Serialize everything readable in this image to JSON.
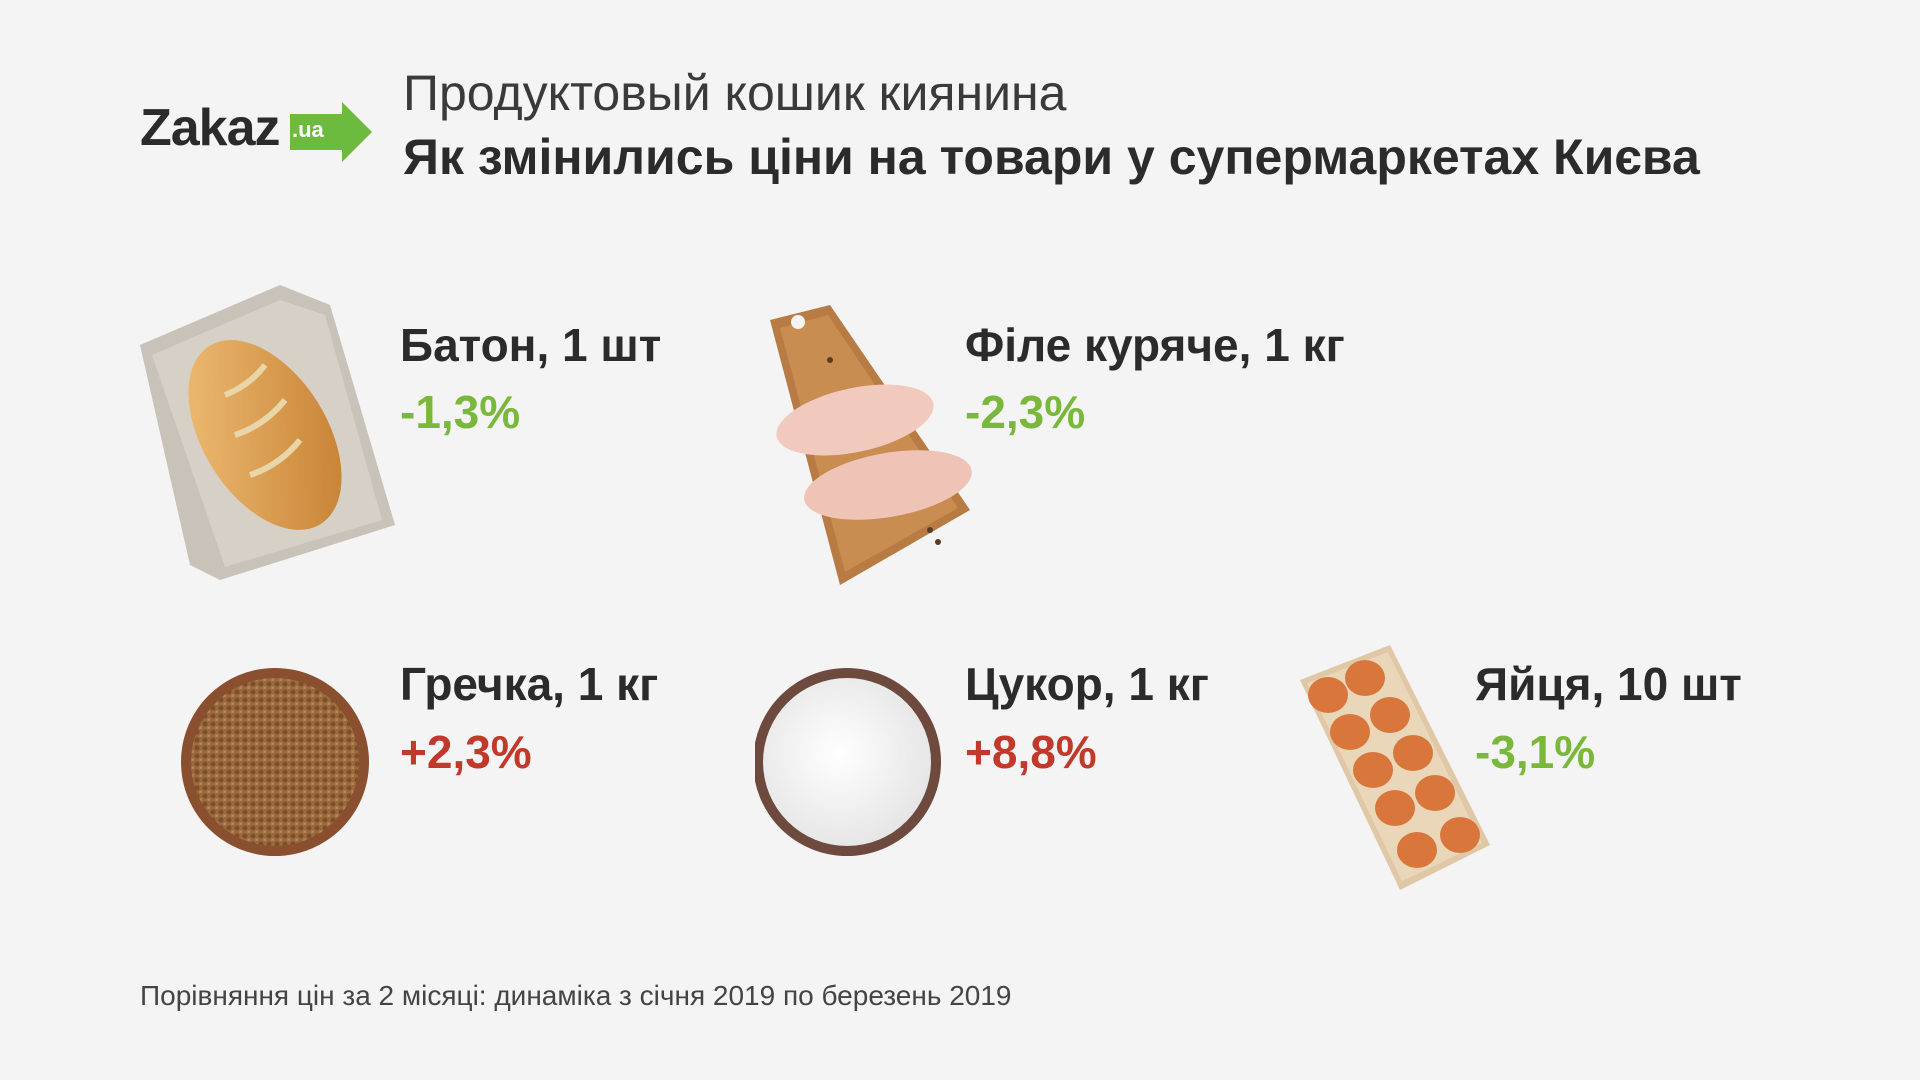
{
  "brand": {
    "name": "Zakaz",
    "domain": ".ua",
    "accent": "#6dbb3e"
  },
  "header": {
    "subtitle": "Продуктовый кошик киянина",
    "title": "Як змінились ціни на товари у супермаркетах Києва"
  },
  "colors": {
    "decrease": "#7ab83b",
    "increase": "#c0392b"
  },
  "items": [
    {
      "name": "Батон, 1 шт",
      "change": "-1,3%",
      "direction": "down",
      "icon": "bread-image"
    },
    {
      "name": "Філе куряче, 1 кг",
      "change": "-2,3%",
      "direction": "down",
      "icon": "chicken-fillet-image"
    },
    {
      "name": "Гречка, 1 кг",
      "change": "+2,3%",
      "direction": "up",
      "icon": "buckwheat-bowl-image"
    },
    {
      "name": "Цукор, 1 кг",
      "change": "+8,8%",
      "direction": "up",
      "icon": "sugar-bowl-image"
    },
    {
      "name": "Яйця, 10 шт",
      "change": "-3,1%",
      "direction": "down",
      "icon": "eggs-carton-image"
    }
  ],
  "footer": {
    "note": "Порівняння цін за 2 місяці: динаміка з січня 2019 по березень 2019"
  }
}
